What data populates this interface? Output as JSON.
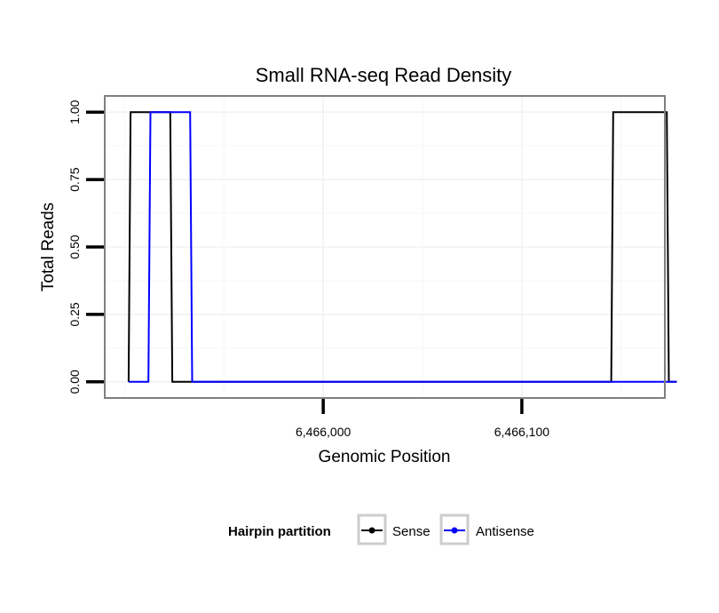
{
  "chart_data": {
    "type": "line",
    "title": "Small RNA-seq Read Density",
    "xlabel": "Genomic Position",
    "ylabel": "Total Reads",
    "xlim": [
      6465890,
      6466172
    ],
    "ylim": [
      -0.06,
      1.06
    ],
    "xticks": [
      6466000,
      6466100
    ],
    "xtick_labels": [
      "6,466,000",
      "6,466,100"
    ],
    "yticks": [
      0,
      0.25,
      0.5,
      0.75,
      1
    ],
    "ytick_labels": [
      "0.00",
      "0.25",
      "0.50",
      "0.75",
      "1.00"
    ],
    "legend": {
      "title": "Hairpin partition",
      "position": "bottom",
      "entries": [
        {
          "name": "Sense",
          "color": "#000000"
        },
        {
          "name": "Antisense",
          "color": "#0000ff"
        }
      ]
    },
    "series": [
      {
        "name": "Sense",
        "color": "#000000",
        "x": [
          6465902,
          6465903,
          6465923,
          6465924,
          6466145,
          6466146,
          6466173,
          6466174,
          6466178
        ],
        "y": [
          0,
          1,
          1,
          0,
          0,
          1,
          1,
          0,
          0
        ]
      },
      {
        "name": "Antisense",
        "color": "#0000ff",
        "x": [
          6465902,
          6465912,
          6465913,
          6465933,
          6465934,
          6466145,
          6466178
        ],
        "y": [
          0,
          0,
          1,
          1,
          0,
          0,
          0
        ]
      }
    ]
  }
}
